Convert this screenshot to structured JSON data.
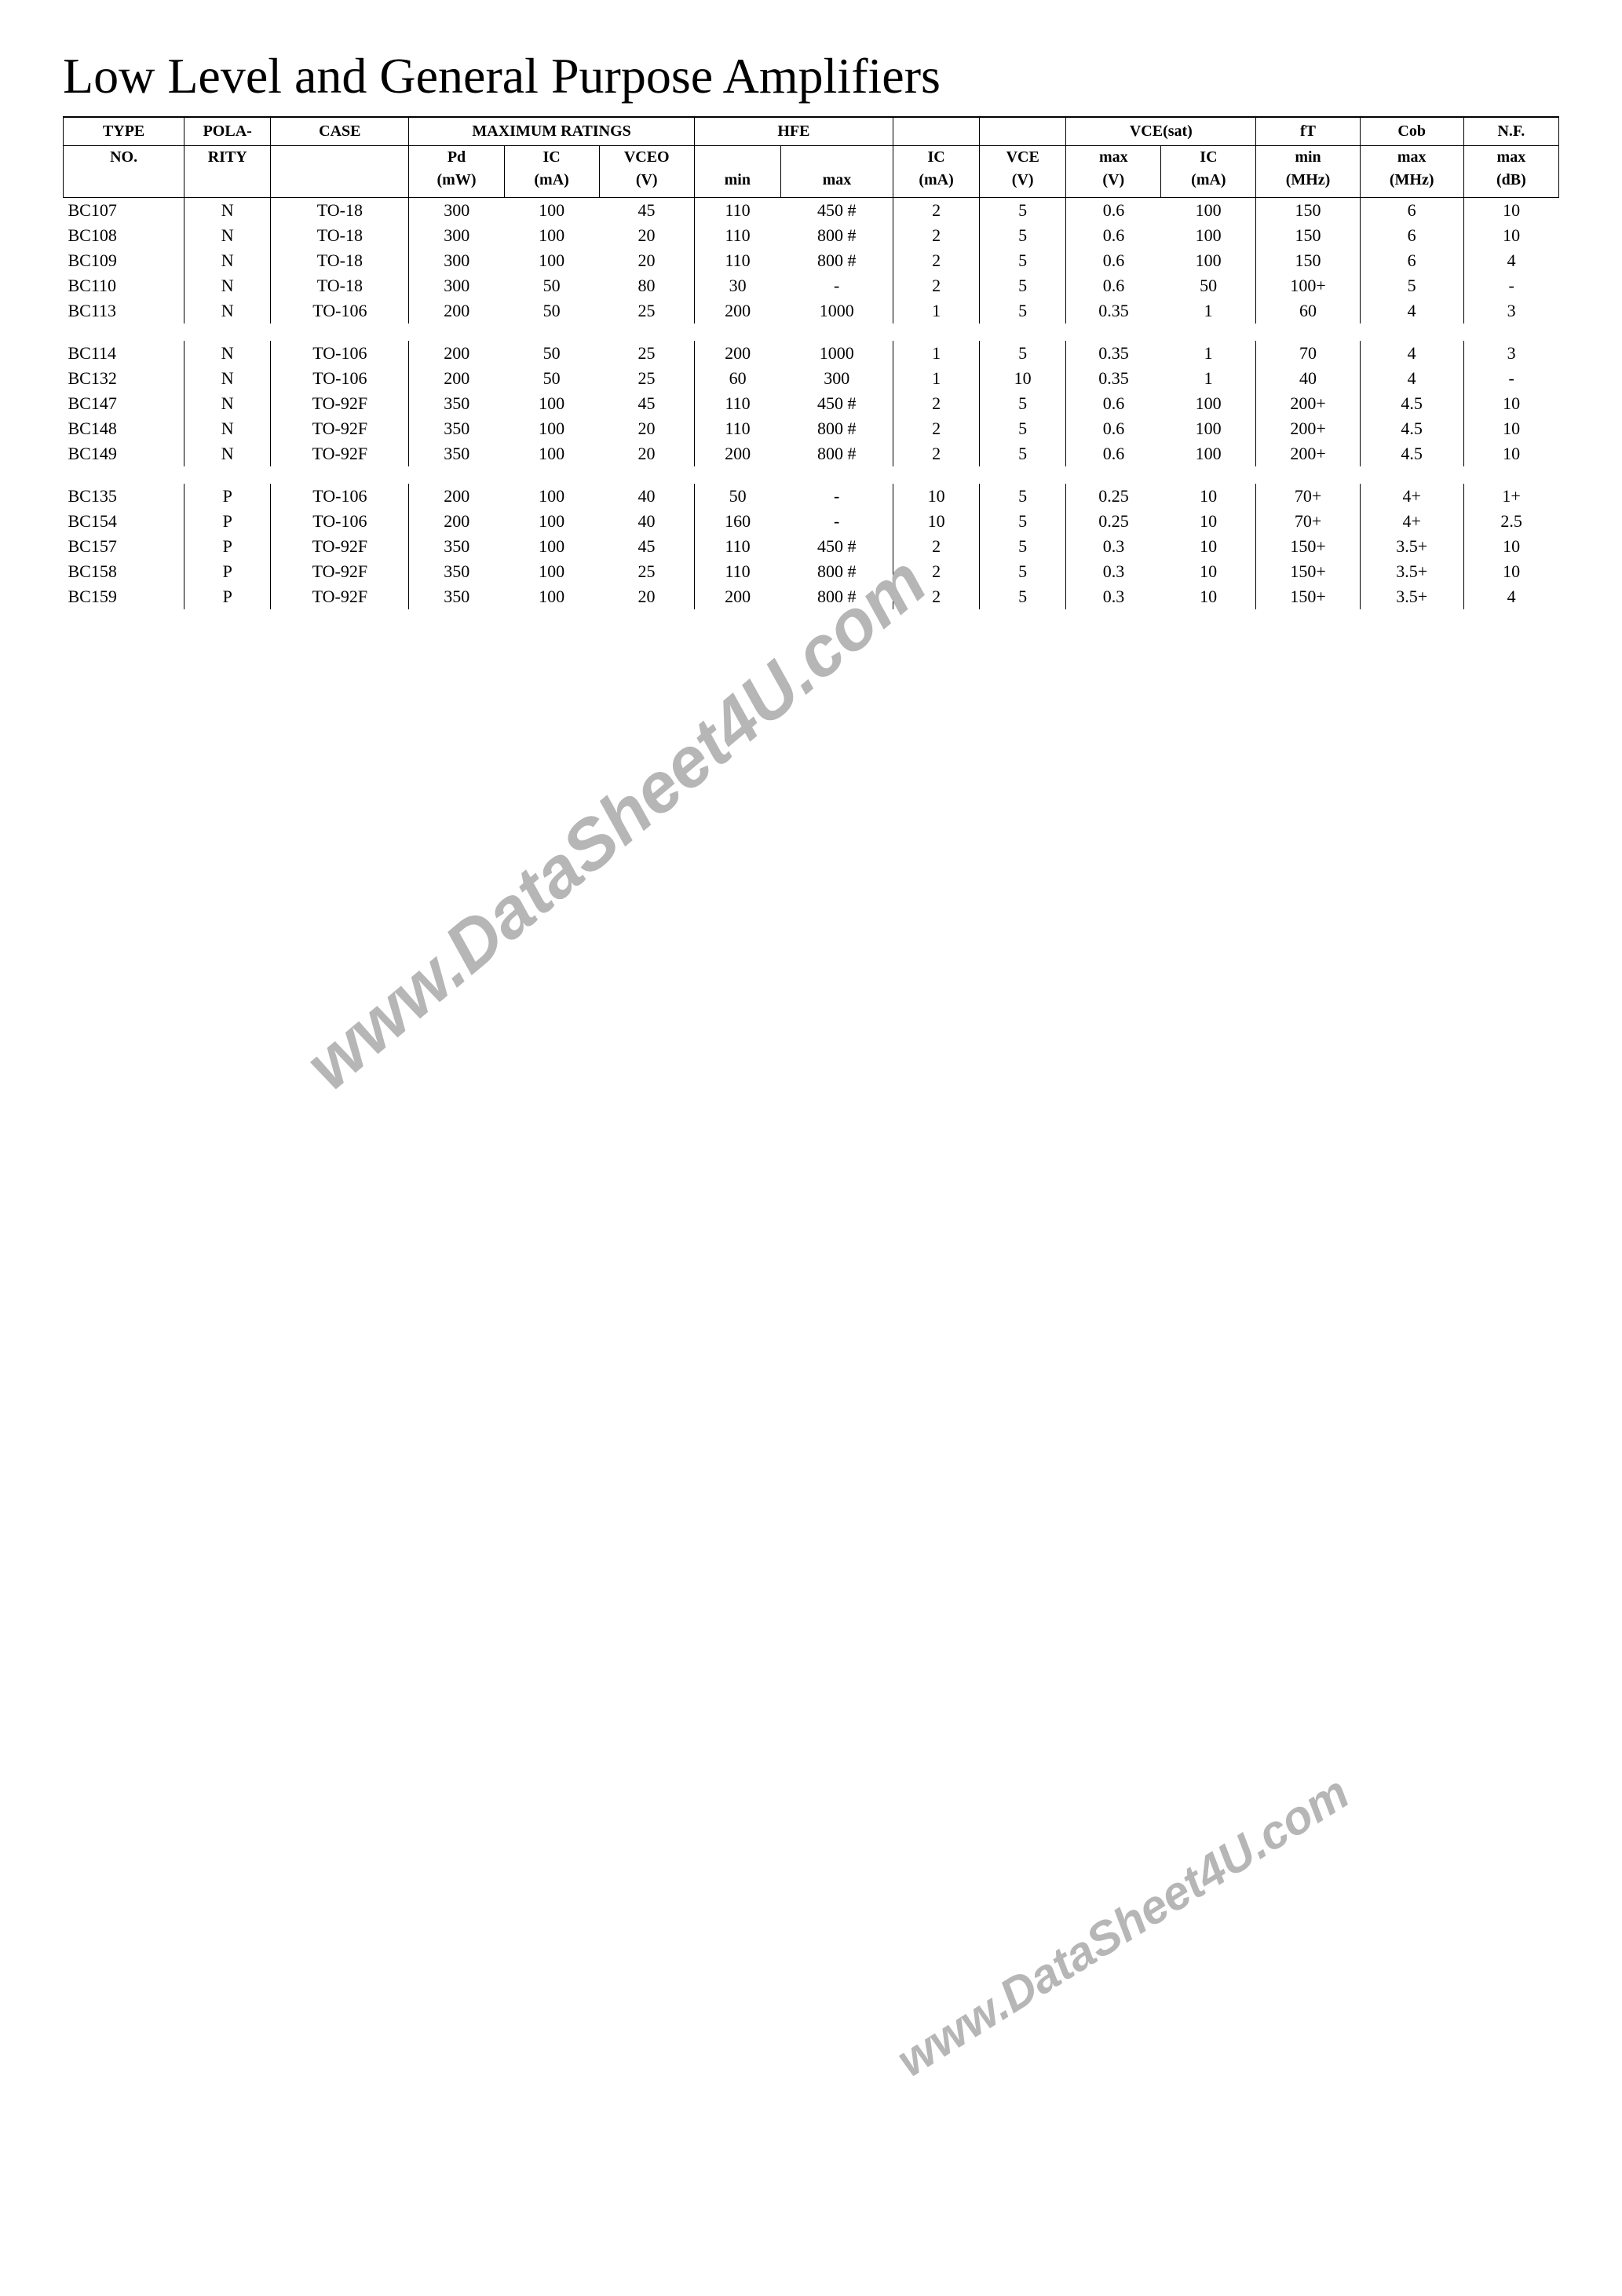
{
  "title": "Low Level and General Purpose Amplifiers",
  "watermark_text": "www.DataSheet4U.com",
  "colors": {
    "text": "#000000",
    "background": "#ffffff",
    "border": "#000000",
    "watermark": "#b6b6b6"
  },
  "table": {
    "header_group1": [
      "TYPE",
      "POLA-",
      "CASE",
      "MAXIMUM RATINGS",
      "HFE",
      "",
      "",
      "VCE(sat)",
      "fT",
      "Cob",
      "N.F."
    ],
    "header_group1_span": [
      1,
      1,
      1,
      3,
      2,
      1,
      1,
      2,
      1,
      1,
      1
    ],
    "header_group2": [
      "NO.",
      "RITY",
      "",
      "Pd",
      "IC",
      "VCEO",
      "",
      "",
      "IC",
      "VCE",
      "max",
      "IC",
      "min",
      "max",
      "max"
    ],
    "header_group3": [
      "",
      "",
      "",
      "(mW)",
      "(mA)",
      "(V)",
      "min",
      "max",
      "(mA)",
      "(V)",
      "(V)",
      "(mA)",
      "(MHz)",
      "(MHz)",
      "(dB)"
    ],
    "columns": [
      "type",
      "polarity",
      "case",
      "pd_mw",
      "ic_ma",
      "vceo_v",
      "hfe_min",
      "hfe_max",
      "ic_ma2",
      "vce_v",
      "vcesat_max_v",
      "vcesat_ic_ma",
      "ft_min_mhz",
      "cob_max_mhz",
      "nf_max_db"
    ],
    "groups": [
      [
        {
          "type": "BC107",
          "polarity": "N",
          "case": "TO-18",
          "pd_mw": "300",
          "ic_ma": "100",
          "vceo_v": "45",
          "hfe_min": "110",
          "hfe_max": "450 #",
          "ic_ma2": "2",
          "vce_v": "5",
          "vcesat_max_v": "0.6",
          "vcesat_ic_ma": "100",
          "ft_min_mhz": "150",
          "cob_max_mhz": "6",
          "nf_max_db": "10"
        },
        {
          "type": "BC108",
          "polarity": "N",
          "case": "TO-18",
          "pd_mw": "300",
          "ic_ma": "100",
          "vceo_v": "20",
          "hfe_min": "110",
          "hfe_max": "800 #",
          "ic_ma2": "2",
          "vce_v": "5",
          "vcesat_max_v": "0.6",
          "vcesat_ic_ma": "100",
          "ft_min_mhz": "150",
          "cob_max_mhz": "6",
          "nf_max_db": "10"
        },
        {
          "type": "BC109",
          "polarity": "N",
          "case": "TO-18",
          "pd_mw": "300",
          "ic_ma": "100",
          "vceo_v": "20",
          "hfe_min": "110",
          "hfe_max": "800 #",
          "ic_ma2": "2",
          "vce_v": "5",
          "vcesat_max_v": "0.6",
          "vcesat_ic_ma": "100",
          "ft_min_mhz": "150",
          "cob_max_mhz": "6",
          "nf_max_db": "4"
        },
        {
          "type": "BC110",
          "polarity": "N",
          "case": "TO-18",
          "pd_mw": "300",
          "ic_ma": "50",
          "vceo_v": "80",
          "hfe_min": "30",
          "hfe_max": "-",
          "ic_ma2": "2",
          "vce_v": "5",
          "vcesat_max_v": "0.6",
          "vcesat_ic_ma": "50",
          "ft_min_mhz": "100+",
          "cob_max_mhz": "5",
          "nf_max_db": "-"
        },
        {
          "type": "BC113",
          "polarity": "N",
          "case": "TO-106",
          "pd_mw": "200",
          "ic_ma": "50",
          "vceo_v": "25",
          "hfe_min": "200",
          "hfe_max": "1000",
          "ic_ma2": "1",
          "vce_v": "5",
          "vcesat_max_v": "0.35",
          "vcesat_ic_ma": "1",
          "ft_min_mhz": "60",
          "cob_max_mhz": "4",
          "nf_max_db": "3"
        }
      ],
      [
        {
          "type": "BC114",
          "polarity": "N",
          "case": "TO-106",
          "pd_mw": "200",
          "ic_ma": "50",
          "vceo_v": "25",
          "hfe_min": "200",
          "hfe_max": "1000",
          "ic_ma2": "1",
          "vce_v": "5",
          "vcesat_max_v": "0.35",
          "vcesat_ic_ma": "1",
          "ft_min_mhz": "70",
          "cob_max_mhz": "4",
          "nf_max_db": "3"
        },
        {
          "type": "BC132",
          "polarity": "N",
          "case": "TO-106",
          "pd_mw": "200",
          "ic_ma": "50",
          "vceo_v": "25",
          "hfe_min": "60",
          "hfe_max": "300",
          "ic_ma2": "1",
          "vce_v": "10",
          "vcesat_max_v": "0.35",
          "vcesat_ic_ma": "1",
          "ft_min_mhz": "40",
          "cob_max_mhz": "4",
          "nf_max_db": "-"
        },
        {
          "type": "BC147",
          "polarity": "N",
          "case": "TO-92F",
          "pd_mw": "350",
          "ic_ma": "100",
          "vceo_v": "45",
          "hfe_min": "110",
          "hfe_max": "450 #",
          "ic_ma2": "2",
          "vce_v": "5",
          "vcesat_max_v": "0.6",
          "vcesat_ic_ma": "100",
          "ft_min_mhz": "200+",
          "cob_max_mhz": "4.5",
          "nf_max_db": "10"
        },
        {
          "type": "BC148",
          "polarity": "N",
          "case": "TO-92F",
          "pd_mw": "350",
          "ic_ma": "100",
          "vceo_v": "20",
          "hfe_min": "110",
          "hfe_max": "800 #",
          "ic_ma2": "2",
          "vce_v": "5",
          "vcesat_max_v": "0.6",
          "vcesat_ic_ma": "100",
          "ft_min_mhz": "200+",
          "cob_max_mhz": "4.5",
          "nf_max_db": "10"
        },
        {
          "type": "BC149",
          "polarity": "N",
          "case": "TO-92F",
          "pd_mw": "350",
          "ic_ma": "100",
          "vceo_v": "20",
          "hfe_min": "200",
          "hfe_max": "800 #",
          "ic_ma2": "2",
          "vce_v": "5",
          "vcesat_max_v": "0.6",
          "vcesat_ic_ma": "100",
          "ft_min_mhz": "200+",
          "cob_max_mhz": "4.5",
          "nf_max_db": "10"
        }
      ],
      [
        {
          "type": "BC135",
          "polarity": "P",
          "case": "TO-106",
          "pd_mw": "200",
          "ic_ma": "100",
          "vceo_v": "40",
          "hfe_min": "50",
          "hfe_max": "-",
          "ic_ma2": "10",
          "vce_v": "5",
          "vcesat_max_v": "0.25",
          "vcesat_ic_ma": "10",
          "ft_min_mhz": "70+",
          "cob_max_mhz": "4+",
          "nf_max_db": "1+"
        },
        {
          "type": "BC154",
          "polarity": "P",
          "case": "TO-106",
          "pd_mw": "200",
          "ic_ma": "100",
          "vceo_v": "40",
          "hfe_min": "160",
          "hfe_max": "-",
          "ic_ma2": "10",
          "vce_v": "5",
          "vcesat_max_v": "0.25",
          "vcesat_ic_ma": "10",
          "ft_min_mhz": "70+",
          "cob_max_mhz": "4+",
          "nf_max_db": "2.5"
        },
        {
          "type": "BC157",
          "polarity": "P",
          "case": "TO-92F",
          "pd_mw": "350",
          "ic_ma": "100",
          "vceo_v": "45",
          "hfe_min": "110",
          "hfe_max": "450 #",
          "ic_ma2": "2",
          "vce_v": "5",
          "vcesat_max_v": "0.3",
          "vcesat_ic_ma": "10",
          "ft_min_mhz": "150+",
          "cob_max_mhz": "3.5+",
          "nf_max_db": "10"
        },
        {
          "type": "BC158",
          "polarity": "P",
          "case": "TO-92F",
          "pd_mw": "350",
          "ic_ma": "100",
          "vceo_v": "25",
          "hfe_min": "110",
          "hfe_max": "800 #",
          "ic_ma2": "2",
          "vce_v": "5",
          "vcesat_max_v": "0.3",
          "vcesat_ic_ma": "10",
          "ft_min_mhz": "150+",
          "cob_max_mhz": "3.5+",
          "nf_max_db": "10"
        },
        {
          "type": "BC159",
          "polarity": "P",
          "case": "TO-92F",
          "pd_mw": "350",
          "ic_ma": "100",
          "vceo_v": "20",
          "hfe_min": "200",
          "hfe_max": "800 #",
          "ic_ma2": "2",
          "vce_v": "5",
          "vcesat_max_v": "0.3",
          "vcesat_ic_ma": "10",
          "ft_min_mhz": "150+",
          "cob_max_mhz": "3.5+",
          "nf_max_db": "4"
        }
      ]
    ]
  }
}
